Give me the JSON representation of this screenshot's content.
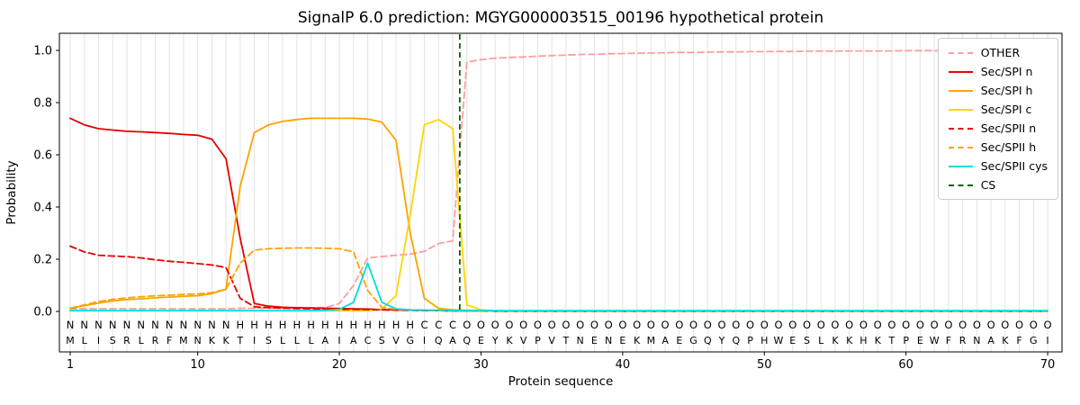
{
  "chart_data": {
    "type": "line",
    "title": "SignalP 6.0 prediction: MGYG000003515_00196 hypothetical protein",
    "xlabel": "Protein sequence",
    "ylabel": "Probability",
    "x_ticks": [
      1,
      10,
      20,
      30,
      40,
      50,
      60,
      70
    ],
    "y_ticks": [
      0.0,
      0.2,
      0.4,
      0.6,
      0.8,
      1.0
    ],
    "xlim": [
      0.2,
      71.2
    ],
    "ylim": [
      -0.16,
      1.07
    ],
    "grid": "light vertical gridline at every residue position 1-70",
    "legend_position": "upper right",
    "x_unit": "residue position 1-70; values[i] corresponds to position i+1",
    "n_positions": 70,
    "sequence": "MLISRLRFMNKKTISLLLAIACSVGIQAQEYKVPVTNENEKMAEGQYQPHWESLKKHKTPEWFRNAKFGI",
    "region_labels": "NNNNNNNNNNNNHHHHHHHHHHHHHCCCOOOOOOOOOOOOOOOOOOOOOOOOOOOOOOOOOOOOOOOOOO",
    "region_colors": {
      "N": "#e60000",
      "H": "#ffa200",
      "C": "#ffd500",
      "O": "#909090"
    },
    "cs_position": 28.5,
    "cs": {
      "label": "CS",
      "color": "#006400",
      "dash": true
    },
    "series": [
      {
        "name": "OTHER",
        "color": "#ff9e9e",
        "dash": true,
        "values": [
          0.01,
          0.01,
          0.01,
          0.01,
          0.01,
          0.01,
          0.01,
          0.01,
          0.01,
          0.01,
          0.01,
          0.01,
          0.012,
          0.012,
          0.012,
          0.012,
          0.013,
          0.013,
          0.015,
          0.03,
          0.1,
          0.205,
          0.21,
          0.215,
          0.22,
          0.23,
          0.26,
          0.27,
          0.955,
          0.965,
          0.97,
          0.973,
          0.975,
          0.978,
          0.98,
          0.982,
          0.984,
          0.985,
          0.987,
          0.988,
          0.989,
          0.99,
          0.991,
          0.992,
          0.992,
          0.993,
          0.994,
          0.994,
          0.995,
          0.995,
          0.996,
          0.996,
          0.997,
          0.997,
          0.997,
          0.998,
          0.998,
          0.998,
          0.998,
          0.999,
          0.999,
          0.999,
          0.999,
          0.999,
          0.999,
          0.999,
          1.0,
          1.0,
          1.0,
          1.0
        ]
      },
      {
        "name": "Sec/SPI n",
        "color": "#e60000",
        "dash": false,
        "values": [
          0.74,
          0.715,
          0.7,
          0.695,
          0.69,
          0.688,
          0.685,
          0.682,
          0.678,
          0.675,
          0.66,
          0.585,
          0.28,
          0.03,
          0.02,
          0.016,
          0.014,
          0.013,
          0.012,
          0.011,
          0.01,
          0.009,
          0.007,
          0.006,
          0.005,
          0.004,
          0.003,
          0.002,
          0.002,
          0.002,
          0.001,
          0.001,
          0.001,
          0.001,
          0.001,
          0.001,
          0.001,
          0.001,
          0.001,
          0.001,
          0.001,
          0.001,
          0.001,
          0.001,
          0.001,
          0.001,
          0.001,
          0.001,
          0.001,
          0.001,
          0.001,
          0.001,
          0.001,
          0.001,
          0.001,
          0.001,
          0.001,
          0.001,
          0.001,
          0.001,
          0.001,
          0.001,
          0.001,
          0.001,
          0.001,
          0.001,
          0.001,
          0.001,
          0.001,
          0.001
        ]
      },
      {
        "name": "Sec/SPI h",
        "color": "#ffa200",
        "dash": false,
        "values": [
          0.012,
          0.022,
          0.032,
          0.04,
          0.045,
          0.048,
          0.052,
          0.055,
          0.058,
          0.06,
          0.068,
          0.085,
          0.48,
          0.685,
          0.715,
          0.728,
          0.735,
          0.74,
          0.74,
          0.74,
          0.74,
          0.737,
          0.725,
          0.655,
          0.3,
          0.05,
          0.012,
          0.006,
          0.004,
          0.003,
          0.002,
          0.002,
          0.002,
          0.002,
          0.002,
          0.002,
          0.002,
          0.002,
          0.002,
          0.002,
          0.002,
          0.002,
          0.002,
          0.002,
          0.002,
          0.002,
          0.002,
          0.002,
          0.002,
          0.002,
          0.002,
          0.002,
          0.002,
          0.002,
          0.002,
          0.002,
          0.002,
          0.002,
          0.002,
          0.002,
          0.002,
          0.002,
          0.002,
          0.002,
          0.002,
          0.002,
          0.002,
          0.002,
          0.002,
          0.002
        ]
      },
      {
        "name": "Sec/SPI c",
        "color": "#ffd500",
        "dash": false,
        "values": [
          0.002,
          0.002,
          0.002,
          0.002,
          0.002,
          0.002,
          0.002,
          0.002,
          0.002,
          0.002,
          0.002,
          0.002,
          0.002,
          0.002,
          0.002,
          0.002,
          0.002,
          0.002,
          0.002,
          0.002,
          0.002,
          0.002,
          0.01,
          0.06,
          0.37,
          0.715,
          0.735,
          0.7,
          0.025,
          0.006,
          0.002,
          0.002,
          0.002,
          0.002,
          0.002,
          0.002,
          0.002,
          0.002,
          0.002,
          0.002,
          0.002,
          0.002,
          0.002,
          0.002,
          0.002,
          0.002,
          0.002,
          0.002,
          0.002,
          0.002,
          0.002,
          0.002,
          0.002,
          0.002,
          0.002,
          0.002,
          0.002,
          0.002,
          0.002,
          0.002,
          0.002,
          0.002,
          0.002,
          0.002,
          0.002,
          0.002,
          0.002,
          0.002,
          0.002,
          0.002
        ]
      },
      {
        "name": "Sec/SPII n",
        "color": "#e60000",
        "dash": true,
        "values": [
          0.25,
          0.228,
          0.215,
          0.212,
          0.21,
          0.205,
          0.198,
          0.192,
          0.188,
          0.183,
          0.178,
          0.168,
          0.05,
          0.018,
          0.014,
          0.012,
          0.011,
          0.01,
          0.009,
          0.008,
          0.008,
          0.007,
          0.006,
          0.005,
          0.004,
          0.003,
          0.003,
          0.002,
          0.002,
          0.002,
          0.001,
          0.001,
          0.001,
          0.001,
          0.001,
          0.001,
          0.001,
          0.001,
          0.001,
          0.001,
          0.001,
          0.001,
          0.001,
          0.001,
          0.001,
          0.001,
          0.001,
          0.001,
          0.001,
          0.001,
          0.001,
          0.001,
          0.001,
          0.001,
          0.001,
          0.001,
          0.001,
          0.001,
          0.001,
          0.001,
          0.001,
          0.001,
          0.001,
          0.001,
          0.001,
          0.001,
          0.001,
          0.001,
          0.001,
          0.001
        ]
      },
      {
        "name": "Sec/SPII h",
        "color": "#ffa200",
        "dash": true,
        "values": [
          0.012,
          0.025,
          0.038,
          0.046,
          0.052,
          0.056,
          0.06,
          0.062,
          0.065,
          0.067,
          0.072,
          0.085,
          0.185,
          0.235,
          0.24,
          0.242,
          0.243,
          0.243,
          0.242,
          0.24,
          0.228,
          0.08,
          0.015,
          0.008,
          0.006,
          0.004,
          0.003,
          0.003,
          0.002,
          0.002,
          0.001,
          0.001,
          0.001,
          0.001,
          0.001,
          0.001,
          0.001,
          0.001,
          0.001,
          0.001,
          0.001,
          0.001,
          0.001,
          0.001,
          0.001,
          0.001,
          0.001,
          0.001,
          0.001,
          0.001,
          0.001,
          0.001,
          0.001,
          0.001,
          0.001,
          0.001,
          0.001,
          0.001,
          0.001,
          0.001,
          0.001,
          0.001,
          0.001,
          0.001,
          0.001,
          0.001,
          0.001,
          0.001,
          0.001,
          0.001
        ]
      },
      {
        "name": "Sec/SPII cys",
        "color": "#00dcdc",
        "dash": false,
        "values": [
          0.003,
          0.003,
          0.003,
          0.003,
          0.003,
          0.003,
          0.003,
          0.003,
          0.003,
          0.003,
          0.003,
          0.003,
          0.003,
          0.003,
          0.003,
          0.003,
          0.003,
          0.003,
          0.004,
          0.008,
          0.035,
          0.185,
          0.035,
          0.01,
          0.006,
          0.005,
          0.005,
          0.004,
          0.003,
          0.003,
          0.003,
          0.003,
          0.003,
          0.003,
          0.003,
          0.003,
          0.003,
          0.003,
          0.003,
          0.003,
          0.003,
          0.003,
          0.003,
          0.003,
          0.003,
          0.003,
          0.003,
          0.003,
          0.003,
          0.003,
          0.003,
          0.003,
          0.003,
          0.003,
          0.003,
          0.003,
          0.003,
          0.003,
          0.003,
          0.003,
          0.003,
          0.003,
          0.003,
          0.003,
          0.003,
          0.003,
          0.003,
          0.003,
          0.003,
          0.003
        ]
      }
    ]
  }
}
